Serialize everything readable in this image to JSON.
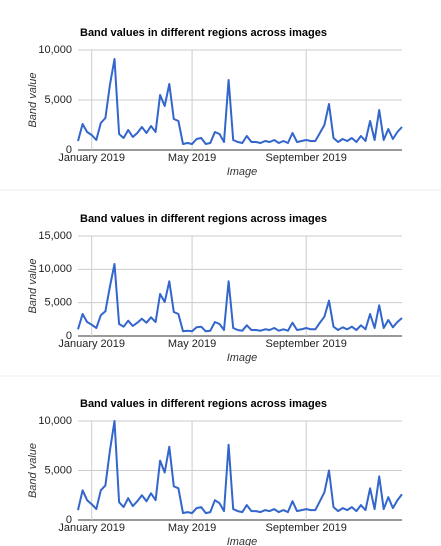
{
  "chart_data": [
    {
      "type": "line",
      "title": "Band values in different regions across images",
      "x_label": "Image",
      "y_label": "Band value",
      "color": "#3366cc",
      "grid": true,
      "values": [
        900,
        2600,
        1800,
        1500,
        1000,
        2700,
        3200,
        6500,
        9100,
        1600,
        1200,
        2000,
        1300,
        1700,
        2300,
        1700,
        2400,
        1800,
        5500,
        4400,
        6600,
        3100,
        2900,
        600,
        700,
        600,
        1100,
        1200,
        600,
        700,
        1800,
        1600,
        800,
        7000,
        1000,
        800,
        700,
        1400,
        800,
        800,
        700,
        900,
        800,
        1000,
        700,
        900,
        700,
        1700,
        800,
        900,
        1000,
        900,
        900,
        1700,
        2500,
        4600,
        1200,
        800,
        1100,
        900,
        1200,
        800,
        1400,
        900,
        2900,
        1000,
        4000,
        1000,
        2100,
        1100,
        1800,
        2300
      ],
      "xlim": [
        0,
        71
      ],
      "xticks": [
        {
          "value": 3,
          "label": "January 2019"
        },
        {
          "value": 25,
          "label": "May 2019"
        },
        {
          "value": 50,
          "label": "September 2019"
        }
      ],
      "ylim": [
        0,
        10000
      ],
      "yticks": [
        0,
        {
          "value": 5000,
          "label": "5,000"
        },
        {
          "value": 10000,
          "label": "10,000"
        }
      ]
    },
    {
      "type": "line",
      "title": "Band values in different regions across images",
      "x_label": "Image",
      "y_label": "Band value",
      "color": "#3366cc",
      "grid": true,
      "values": [
        1000,
        3300,
        2100,
        1700,
        1200,
        3100,
        3700,
        7400,
        10800,
        1800,
        1400,
        2300,
        1500,
        2000,
        2600,
        2000,
        2800,
        2100,
        6300,
        5100,
        8200,
        3600,
        3300,
        700,
        800,
        700,
        1300,
        1400,
        700,
        800,
        2100,
        1800,
        900,
        8200,
        1200,
        900,
        800,
        1600,
        900,
        900,
        800,
        1000,
        900,
        1200,
        800,
        1000,
        800,
        2000,
        900,
        1000,
        1200,
        1000,
        1000,
        2000,
        2900,
        5300,
        1400,
        900,
        1300,
        1000,
        1400,
        900,
        1600,
        1000,
        3300,
        1200,
        4600,
        1200,
        2400,
        1300,
        2100,
        2700
      ],
      "xlim": [
        0,
        71
      ],
      "xticks": [
        {
          "value": 3,
          "label": "January 2019"
        },
        {
          "value": 25,
          "label": "May 2019"
        },
        {
          "value": 50,
          "label": "September 2019"
        }
      ],
      "ylim": [
        0,
        15000
      ],
      "yticks": [
        0,
        {
          "value": 5000,
          "label": "5,000"
        },
        {
          "value": 10000,
          "label": "10,000"
        },
        {
          "value": 15000,
          "label": "15,000"
        }
      ]
    },
    {
      "type": "line",
      "title": "Band values in different regions across images",
      "x_label": "Image",
      "y_label": "Band value",
      "color": "#3366cc",
      "grid": true,
      "values": [
        1000,
        3000,
        2000,
        1600,
        1100,
        3000,
        3500,
        7000,
        10000,
        1800,
        1300,
        2200,
        1400,
        1900,
        2500,
        1900,
        2700,
        2000,
        6000,
        4800,
        7400,
        3400,
        3200,
        700,
        800,
        700,
        1200,
        1300,
        700,
        800,
        2000,
        1700,
        900,
        7600,
        1100,
        900,
        800,
        1500,
        900,
        900,
        800,
        1000,
        900,
        1100,
        800,
        1000,
        800,
        1900,
        900,
        1000,
        1100,
        1000,
        1000,
        1900,
        2800,
        5000,
        1300,
        900,
        1200,
        1000,
        1300,
        900,
        1500,
        1000,
        3200,
        1100,
        4400,
        1100,
        2300,
        1200,
        2000,
        2600
      ],
      "xlim": [
        0,
        71
      ],
      "xticks": [
        {
          "value": 3,
          "label": "January 2019"
        },
        {
          "value": 25,
          "label": "May 2019"
        },
        {
          "value": 50,
          "label": "September 2019"
        }
      ],
      "ylim": [
        0,
        10000
      ],
      "yticks": [
        0,
        {
          "value": 5000,
          "label": "5,000"
        },
        {
          "value": 10000,
          "label": "10,000"
        }
      ]
    }
  ]
}
